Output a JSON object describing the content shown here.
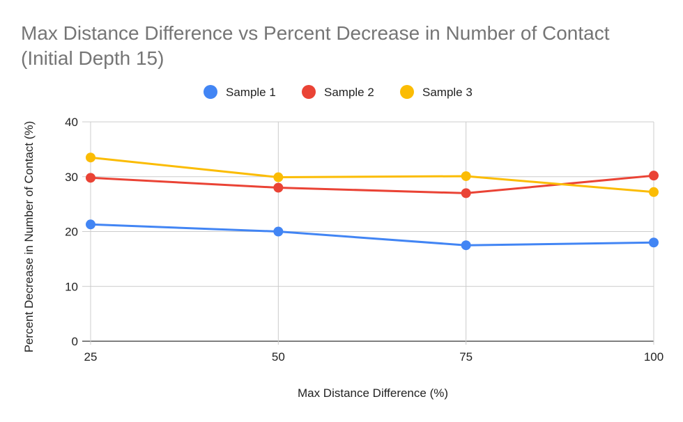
{
  "chart_data": {
    "type": "line",
    "title": "Max Distance Difference vs Percent Decrease in Number of Contact (Initial Depth 15)",
    "xlabel": "Max Distance Difference (%)",
    "ylabel": "Percent Decrease in Number of Contact (%)",
    "x": [
      25,
      50,
      75,
      100
    ],
    "x_tick_labels": [
      "25",
      "50",
      "75",
      "100"
    ],
    "ylim": [
      0,
      40
    ],
    "y_ticks": [
      0,
      10,
      20,
      30,
      40
    ],
    "y_tick_labels": [
      "0",
      "10",
      "20",
      "30",
      "40"
    ],
    "grid": true,
    "legend_position": "top",
    "series": [
      {
        "name": "Sample 1",
        "color": "#4285F4",
        "values": [
          21.3,
          20.0,
          17.5,
          18.0
        ]
      },
      {
        "name": "Sample 2",
        "color": "#EA4335",
        "values": [
          29.8,
          28.0,
          27.0,
          30.2
        ]
      },
      {
        "name": "Sample 3",
        "color": "#FBBC04",
        "values": [
          33.5,
          29.9,
          30.1,
          27.2
        ]
      }
    ]
  }
}
